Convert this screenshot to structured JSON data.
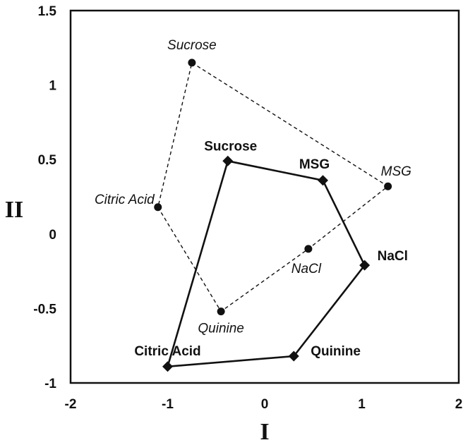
{
  "chart_data": {
    "type": "scatter",
    "xlabel": "I",
    "ylabel": "II",
    "xlim": [
      -2,
      2
    ],
    "ylim": [
      -1,
      1.5
    ],
    "xticks": [
      "-2",
      "-1",
      "0",
      "1",
      "2"
    ],
    "yticks": [
      "-1",
      "-0.5",
      "0",
      "0.5",
      "1",
      "1.5"
    ],
    "grid": false,
    "series": [
      {
        "marker": "circle",
        "line": "dashed",
        "label_style": "italic",
        "closed": true,
        "points": [
          {
            "label": "Sucrose",
            "x": -0.75,
            "y": 1.15
          },
          {
            "label": "MSG",
            "x": 1.27,
            "y": 0.32
          },
          {
            "label": "NaCl",
            "x": 0.45,
            "y": -0.1
          },
          {
            "label": "Quinine",
            "x": -0.45,
            "y": -0.52
          },
          {
            "label": "Citric Acid",
            "x": -1.1,
            "y": 0.18
          }
        ]
      },
      {
        "marker": "diamond",
        "line": "solid",
        "label_style": "bold",
        "closed": true,
        "points": [
          {
            "label": "Sucrose",
            "x": -0.38,
            "y": 0.49
          },
          {
            "label": "MSG",
            "x": 0.6,
            "y": 0.36
          },
          {
            "label": "NaCl",
            "x": 1.03,
            "y": -0.21
          },
          {
            "label": "Quinine",
            "x": 0.3,
            "y": -0.82
          },
          {
            "label": "Citric Acid",
            "x": -1.0,
            "y": -0.89
          }
        ]
      }
    ]
  }
}
